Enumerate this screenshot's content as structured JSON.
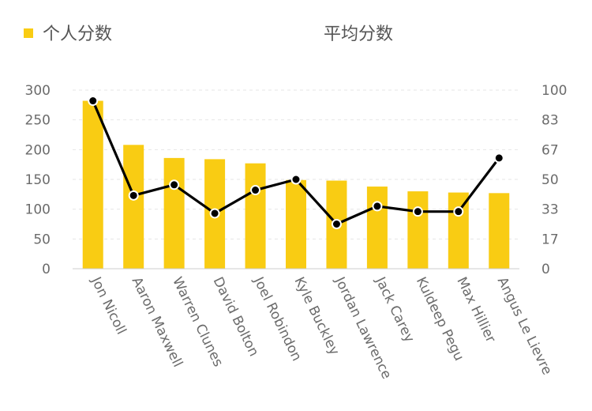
{
  "chart_data": {
    "type": "bar",
    "categories": [
      "Jon Nicoll",
      "Aaron Maxwell",
      "Warren Clunes",
      "David Bolton",
      "Joel Robindon",
      "Kyle Buckley",
      "Jordan Lawrence",
      "Jack Carey",
      "Kuldeep Pegu",
      "Max Hillier",
      "Angus Le Lievre"
    ],
    "series": [
      {
        "name": "个人分数",
        "type": "bar",
        "axis": "left",
        "color": "#f9cc13",
        "values": [
          282,
          208,
          186,
          184,
          177,
          149,
          148,
          138,
          130,
          128,
          127
        ]
      },
      {
        "name": "平均分数",
        "type": "line",
        "axis": "right",
        "color": "#000000",
        "values": [
          94,
          41,
          47,
          31,
          44,
          50,
          25,
          35,
          32,
          32,
          62
        ]
      }
    ],
    "y_left": {
      "ylim": [
        0,
        300
      ],
      "ticks": [
        "0",
        "50",
        "100",
        "150",
        "200",
        "250",
        "300"
      ]
    },
    "y_right": {
      "ylim": [
        0,
        100
      ],
      "tick_values": [
        0,
        16.67,
        33.33,
        50,
        66.67,
        83.33,
        100
      ],
      "ticks": [
        "0",
        "17",
        "33",
        "50",
        "67",
        "83",
        "100"
      ]
    },
    "grid": true,
    "legend_position": "top"
  }
}
